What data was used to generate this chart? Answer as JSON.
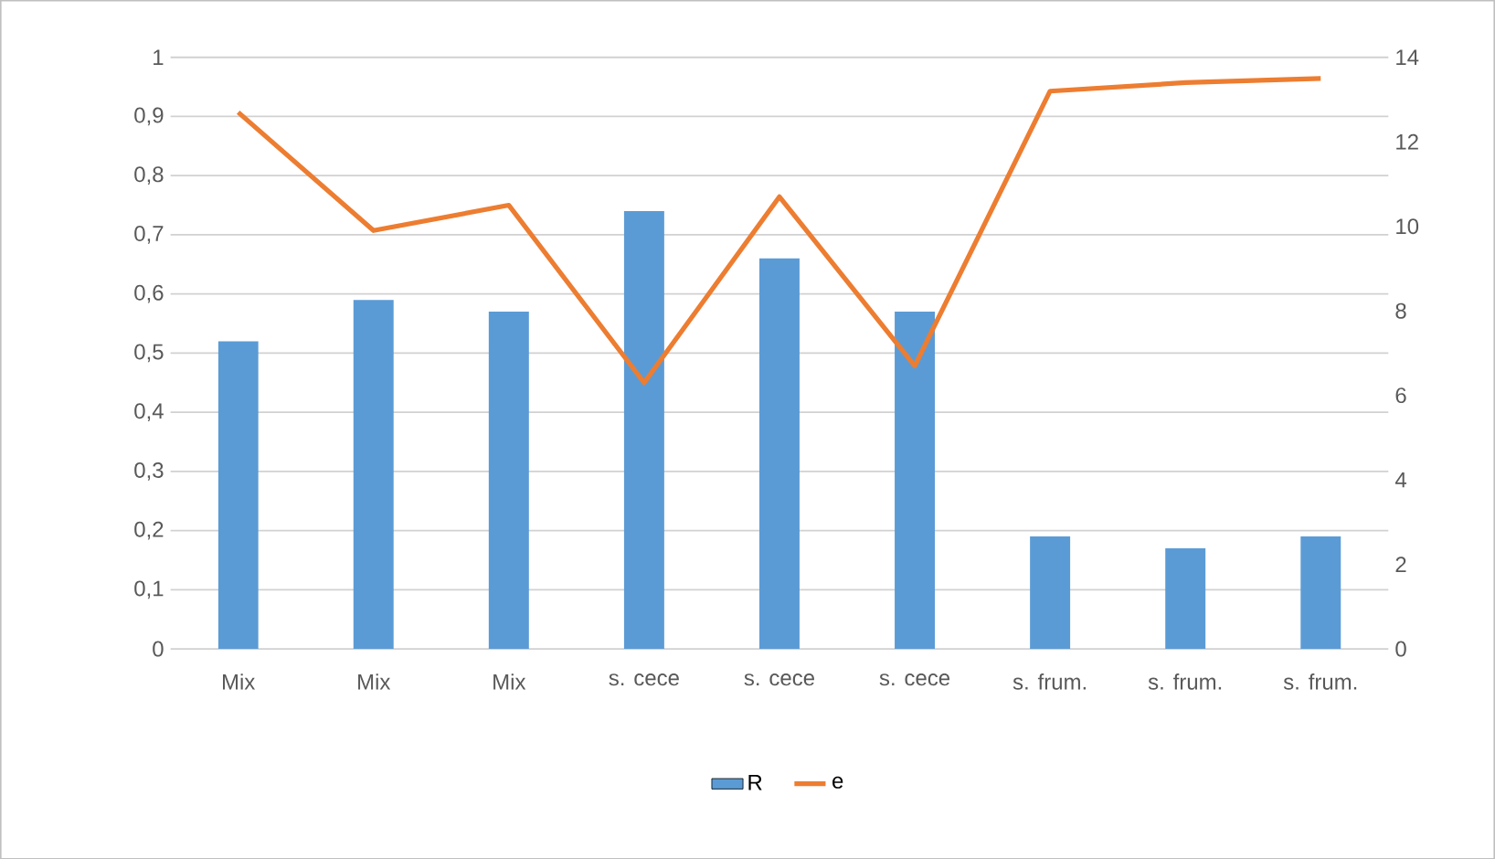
{
  "chart_data": {
    "type": "bar",
    "categories": [
      "Mix",
      "Mix",
      "Mix",
      "s. cece",
      "s. cece",
      "s. cece",
      "s. frum.",
      "s. frum.",
      "s. frum."
    ],
    "series": [
      {
        "name": "R",
        "color": "#5b9bd5",
        "values": [
          0.52,
          0.59,
          0.57,
          0.74,
          0.66,
          0.57,
          0.19,
          0.17,
          0.19
        ]
      },
      {
        "name": "e",
        "type": "line",
        "axis": "y2",
        "color": "#ed7d31",
        "values": [
          12.7,
          9.9,
          10.5,
          6.3,
          10.7,
          6.7,
          13.2,
          13.4,
          13.5
        ]
      }
    ],
    "ylim": [
      0,
      1
    ],
    "yticks": [
      {
        "value": 0,
        "label": "0"
      },
      {
        "value": 0.1,
        "label": "0,1"
      },
      {
        "value": 0.2,
        "label": "0,2"
      },
      {
        "value": 0.3,
        "label": "0,3"
      },
      {
        "value": 0.4,
        "label": "0,4"
      },
      {
        "value": 0.5,
        "label": "0,5"
      },
      {
        "value": 0.6,
        "label": "0,6"
      },
      {
        "value": 0.7,
        "label": "0,7"
      },
      {
        "value": 0.8,
        "label": "0,8"
      },
      {
        "value": 0.9,
        "label": "0,9"
      },
      {
        "value": 1,
        "label": "1"
      }
    ],
    "y2lim": [
      0,
      14
    ],
    "y2ticks": [
      0,
      2,
      4,
      6,
      8,
      10,
      12,
      14
    ],
    "grid": "y",
    "legend": "bottom",
    "marker": "none"
  }
}
